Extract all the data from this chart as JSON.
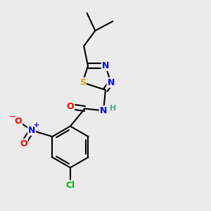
{
  "background_color": "#ebebeb",
  "colors": {
    "C": "#000000",
    "N": "#0000ff",
    "O": "#ff0000",
    "S": "#ccaa00",
    "Cl": "#00bb00",
    "H": "#888888",
    "bond": "#000000"
  },
  "bond_lw": 1.5,
  "font_size": 9
}
